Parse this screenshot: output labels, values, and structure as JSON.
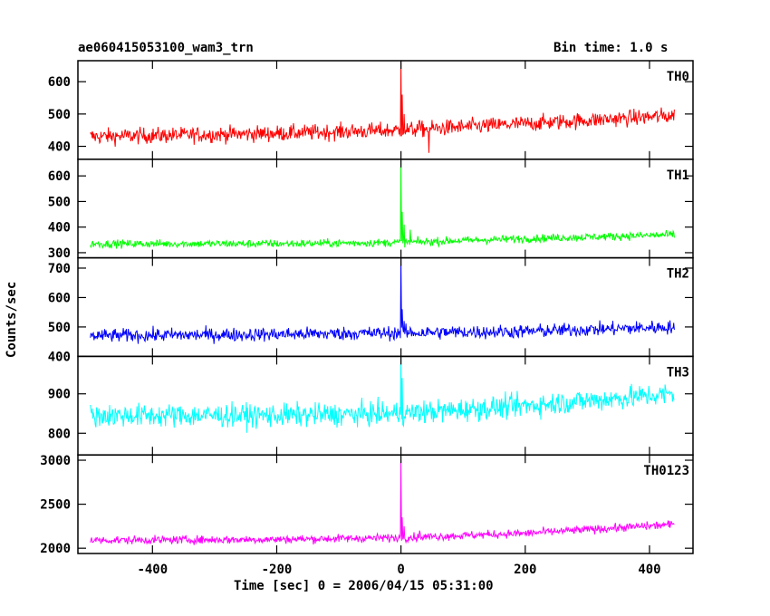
{
  "header": {
    "title": "ae060415053100_wam3_trn",
    "bin_time": "Bin time: 1.0 s"
  },
  "chart_data": {
    "type": "line",
    "xlabel": "Time [sec] 0 = 2006/04/15 05:31:00",
    "ylabel": "Counts/sec",
    "xlim": [
      -520,
      470
    ],
    "x_ticks": [
      "-400",
      "-200",
      "0",
      "200",
      "400"
    ],
    "x_tick_values": [
      -400,
      -200,
      0,
      200,
      400
    ],
    "x_range": [
      -500,
      440
    ],
    "grid": false,
    "panels": [
      {
        "name": "TH0",
        "color": "#ff0000",
        "ylim": [
          360,
          665
        ],
        "y_ticks": [
          "400",
          "500",
          "600"
        ],
        "y_tick_values": [
          400,
          500,
          600
        ],
        "baseline": [
          [
            -500,
            430
          ],
          [
            -200,
            440
          ],
          [
            0,
            450
          ],
          [
            200,
            470
          ],
          [
            440,
            495
          ]
        ],
        "noise": 32,
        "peak": 665,
        "features": [
          [
            0,
            665
          ],
          [
            2,
            560
          ],
          [
            5,
            500
          ],
          [
            30,
            480
          ],
          [
            45,
            380
          ]
        ]
      },
      {
        "name": "TH1",
        "color": "#00ff00",
        "ylim": [
          280,
          665
        ],
        "y_ticks": [
          "300",
          "400",
          "500",
          "600"
        ],
        "y_tick_values": [
          300,
          400,
          500,
          600
        ],
        "baseline": [
          [
            -500,
            335
          ],
          [
            -200,
            335
          ],
          [
            0,
            340
          ],
          [
            200,
            355
          ],
          [
            440,
            370
          ]
        ],
        "noise": 20,
        "peak": 660,
        "features": [
          [
            0,
            660
          ],
          [
            2,
            460
          ],
          [
            5,
            410
          ],
          [
            15,
            390
          ]
        ]
      },
      {
        "name": "TH2",
        "color": "#0000ff",
        "ylim": [
          400,
          735
        ],
        "y_ticks": [
          "400",
          "500",
          "600",
          "700"
        ],
        "y_tick_values": [
          400,
          500,
          600,
          700
        ],
        "baseline": [
          [
            -500,
            470
          ],
          [
            -200,
            475
          ],
          [
            0,
            480
          ],
          [
            200,
            485
          ],
          [
            440,
            500
          ]
        ],
        "noise": 30,
        "peak": 735,
        "features": [
          [
            0,
            735
          ],
          [
            2,
            560
          ],
          [
            5,
            520
          ]
        ]
      },
      {
        "name": "TH3",
        "color": "#00ffff",
        "ylim": [
          745,
          995
        ],
        "y_ticks": [
          "800",
          "900"
        ],
        "y_tick_values": [
          800,
          900
        ],
        "baseline": [
          [
            -500,
            845
          ],
          [
            -200,
            845
          ],
          [
            0,
            850
          ],
          [
            200,
            870
          ],
          [
            440,
            900
          ]
        ],
        "noise": 38,
        "peak": 995,
        "features": [
          [
            0,
            995
          ],
          [
            2,
            940
          ]
        ]
      },
      {
        "name": "TH0123",
        "color": "#ff00ff",
        "ylim": [
          1940,
          3060
        ],
        "y_ticks": [
          "2000",
          "2500",
          "3000"
        ],
        "y_tick_values": [
          2000,
          2500,
          3000
        ],
        "baseline": [
          [
            -500,
            2090
          ],
          [
            -200,
            2100
          ],
          [
            0,
            2120
          ],
          [
            200,
            2170
          ],
          [
            440,
            2270
          ]
        ],
        "noise": 60,
        "peak": 3000,
        "features": [
          [
            0,
            3000
          ],
          [
            2,
            2350
          ],
          [
            5,
            2250
          ],
          [
            30,
            2200
          ]
        ]
      }
    ]
  }
}
